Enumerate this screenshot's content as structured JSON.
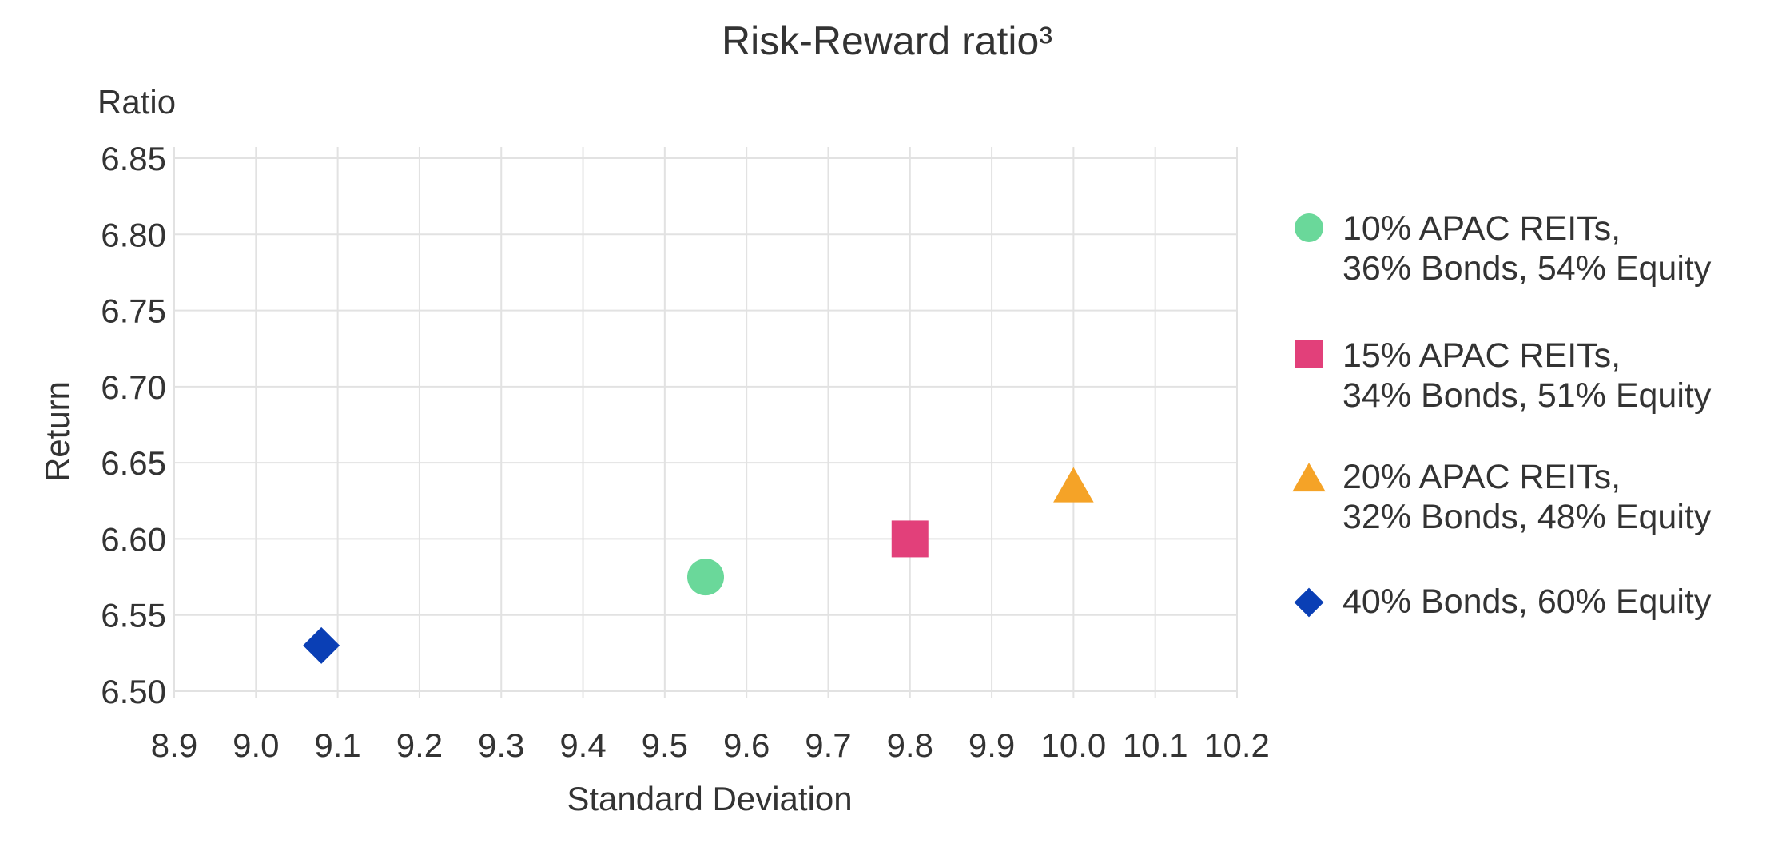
{
  "chart_data": {
    "type": "scatter",
    "title": "Risk-Reward ratio³",
    "unit_label": "Ratio",
    "xlabel": "Standard Deviation",
    "ylabel": "Return",
    "xlim": [
      8.9,
      10.2
    ],
    "ylim": [
      6.5,
      6.85
    ],
    "x_ticks": [
      "8.9",
      "9.0",
      "9.1",
      "9.2",
      "9.3",
      "9.4",
      "9.5",
      "9.6",
      "9.7",
      "9.8",
      "9.9",
      "10.0",
      "10.1",
      "10.2"
    ],
    "y_ticks": [
      "6.85",
      "6.80",
      "6.75",
      "6.70",
      "6.65",
      "6.60",
      "6.55",
      "6.50"
    ],
    "grid": true,
    "legend_position": "right",
    "series": [
      {
        "name_lines": [
          "10% APAC REITs,",
          "36% Bonds, 54% Equity"
        ],
        "marker": "circle",
        "color": "#6ad89a",
        "x": 9.55,
        "y": 6.575
      },
      {
        "name_lines": [
          "15% APAC REITs,",
          "34% Bonds, 51% Equity"
        ],
        "marker": "square",
        "color": "#e2407a",
        "x": 9.8,
        "y": 6.6
      },
      {
        "name_lines": [
          "20% APAC REITs,",
          "32% Bonds, 48% Equity"
        ],
        "marker": "triangle",
        "color": "#f5a327",
        "x": 10.0,
        "y": 6.635
      },
      {
        "name_lines": [
          "40% Bonds, 60% Equity"
        ],
        "marker": "diamond",
        "color": "#0a3fb5",
        "x": 9.08,
        "y": 6.53
      }
    ]
  }
}
